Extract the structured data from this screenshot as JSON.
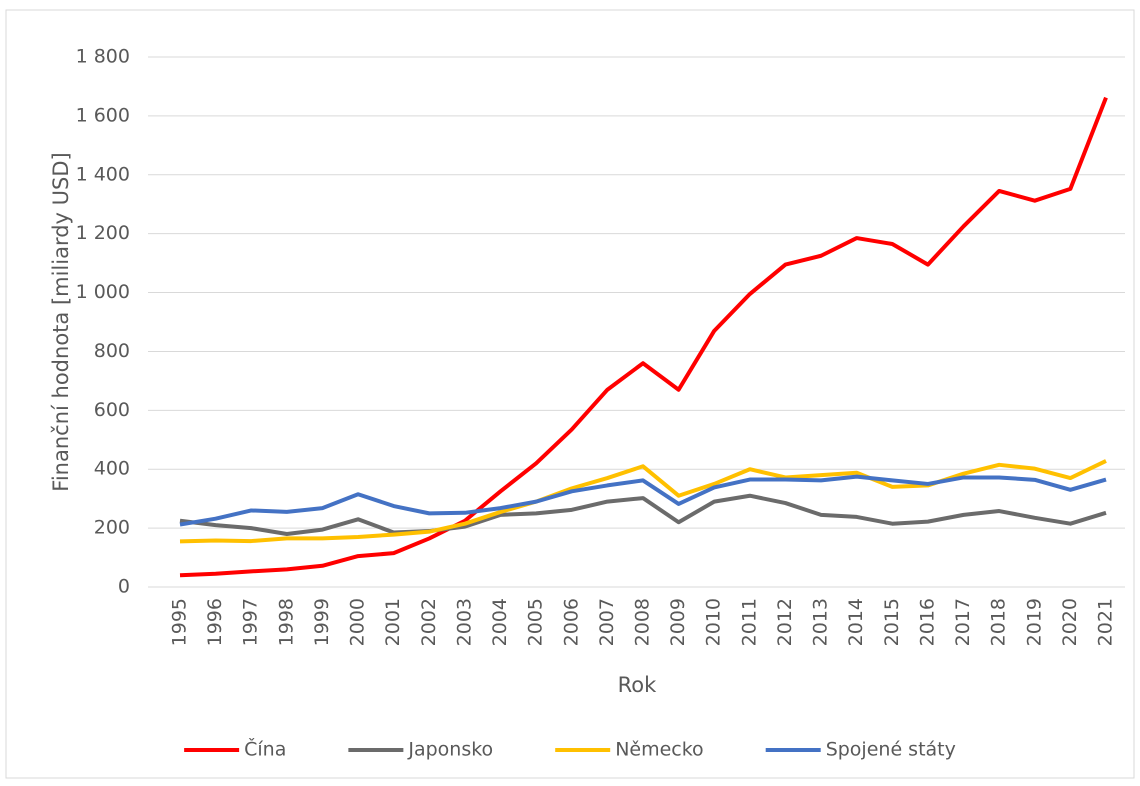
{
  "chart_data": {
    "type": "line",
    "x_label": "Rok",
    "y_label": "Finanční hodnota [miliardy USD]",
    "categories": [
      "1995",
      "1996",
      "1997",
      "1998",
      "1999",
      "2000",
      "2001",
      "2002",
      "2003",
      "2004",
      "2005",
      "2006",
      "2007",
      "2008",
      "2009",
      "2010",
      "2011",
      "2012",
      "2013",
      "2014",
      "2015",
      "2016",
      "2017",
      "2018",
      "2019",
      "2020",
      "2021"
    ],
    "series": [
      {
        "name": "Čína",
        "color": "#ff0000",
        "values": [
          40,
          45,
          53,
          60,
          72,
          105,
          115,
          165,
          225,
          325,
          420,
          535,
          670,
          760,
          670,
          870,
          995,
          1095,
          1125,
          1185,
          1165,
          1095,
          1225,
          1345,
          1312,
          1352,
          1662
        ]
      },
      {
        "name": "Japonsko",
        "color": "#6b6b6b",
        "values": [
          225,
          210,
          200,
          180,
          195,
          230,
          185,
          190,
          205,
          245,
          250,
          262,
          290,
          302,
          220,
          290,
          310,
          285,
          245,
          238,
          215,
          222,
          245,
          258,
          235,
          215,
          252
        ]
      },
      {
        "name": "Německo",
        "color": "#ffc000",
        "values": [
          155,
          158,
          156,
          165,
          165,
          170,
          178,
          188,
          215,
          255,
          290,
          335,
          370,
          410,
          310,
          350,
          400,
          372,
          380,
          388,
          340,
          345,
          385,
          415,
          402,
          370,
          428
        ]
      },
      {
        "name": "Spojené státy",
        "color": "#4472c4",
        "values": [
          212,
          232,
          260,
          255,
          268,
          315,
          275,
          250,
          252,
          268,
          290,
          325,
          345,
          362,
          282,
          338,
          365,
          365,
          362,
          375,
          362,
          350,
          372,
          372,
          364,
          330,
          365
        ]
      }
    ],
    "ylim": [
      0,
      1800
    ],
    "yticks": [
      0,
      200,
      400,
      600,
      800,
      {
        "value": 1000,
        "label": "1 000"
      },
      {
        "value": 1200,
        "label": "1 200"
      },
      {
        "value": 1400,
        "label": "1 400"
      },
      {
        "value": 1600,
        "label": "1 600"
      },
      {
        "value": 1800,
        "label": "1 800"
      }
    ],
    "grid": true,
    "legend": "bottom"
  }
}
